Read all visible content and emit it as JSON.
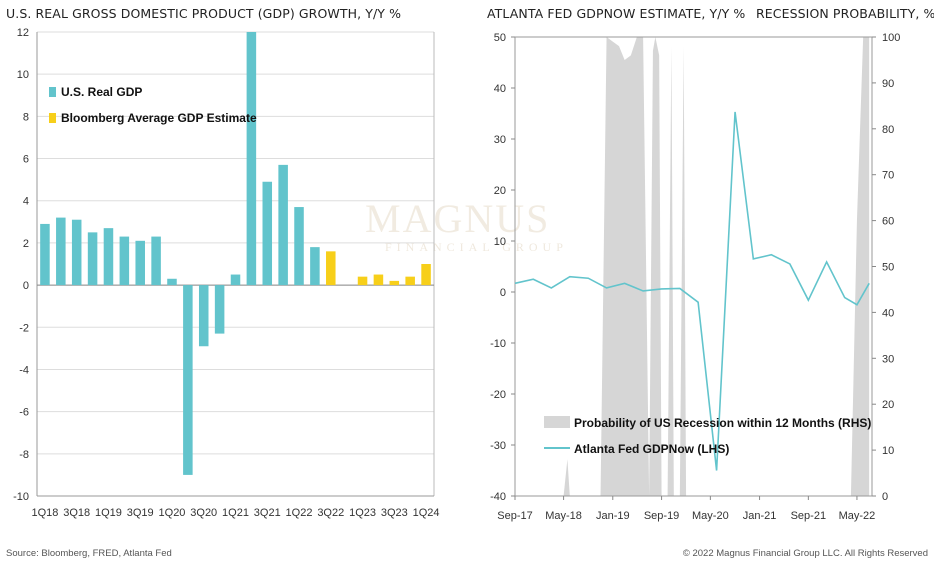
{
  "left_chart": {
    "title": "U.S. REAL GROSS DOMESTIC PRODUCT (GDP) GROWTH, Y/Y %"
  },
  "right_chart": {
    "title": "ATLANTA FED GDPNOW ESTIMATE, Y/Y %",
    "right_title": "RECESSION PROBABILITY, %"
  },
  "footer": {
    "source": "Source: Bloomberg, FRED, Atlanta Fed",
    "copyright": "© 2022 Magnus Financial Group LLC. All Rights Reserved"
  },
  "watermark": {
    "name": "MAGNUS",
    "sub": "FINANCIAL GROUP"
  },
  "colors": {
    "gdp": "#62C4CC",
    "estimate": "#F7CF1A",
    "recession": "#D6D6D6",
    "gdpnow": "#62C4CC",
    "grid": "#DDDDDD",
    "axis": "#333333"
  },
  "chart_data": [
    {
      "type": "bar",
      "ylim": [
        -10,
        12
      ],
      "yticks": [
        -10,
        -8,
        -6,
        -4,
        -2,
        0,
        2,
        4,
        6,
        8,
        10,
        12
      ],
      "categories": [
        "1Q18",
        "2Q18",
        "3Q18",
        "4Q18",
        "1Q19",
        "2Q19",
        "3Q19",
        "4Q19",
        "1Q20",
        "2Q20",
        "3Q20",
        "4Q20",
        "1Q21",
        "2Q21",
        "3Q21",
        "4Q21",
        "1Q22",
        "2Q22",
        "3Q22",
        "4Q22",
        "1Q23",
        "2Q23",
        "3Q23",
        "4Q23",
        "1Q24"
      ],
      "xtick_labels": [
        "1Q18",
        "3Q18",
        "1Q19",
        "3Q19",
        "1Q20",
        "3Q20",
        "1Q21",
        "3Q21",
        "1Q22",
        "3Q22",
        "1Q23",
        "3Q23",
        "1Q24"
      ],
      "series": [
        {
          "name": "U.S. Real GDP",
          "values": [
            2.9,
            3.2,
            3.1,
            2.5,
            2.7,
            2.3,
            2.1,
            2.3,
            0.3,
            -9.0,
            -2.9,
            -2.3,
            0.5,
            12.2,
            4.9,
            5.7,
            3.7,
            1.8,
            null,
            null,
            null,
            null,
            null,
            null,
            null
          ]
        },
        {
          "name": "Bloomberg Average GDP Estimate",
          "values": [
            null,
            null,
            null,
            null,
            null,
            null,
            null,
            null,
            null,
            null,
            null,
            null,
            null,
            null,
            null,
            null,
            null,
            null,
            1.6,
            null,
            0.4,
            0.5,
            0.2,
            0.4,
            1.0
          ]
        }
      ],
      "legend_position": "top-left"
    },
    {
      "type": "area+line",
      "x_ticks": [
        "Sep-17",
        "May-18",
        "Jan-19",
        "Sep-19",
        "May-20",
        "Jan-21",
        "Sep-21",
        "May-22"
      ],
      "left_axis": {
        "ylim": [
          -40,
          50
        ],
        "yticks": [
          -40,
          -30,
          -20,
          -10,
          0,
          10,
          20,
          30,
          40,
          50
        ]
      },
      "right_axis": {
        "ylim": [
          0,
          100
        ],
        "yticks": [
          0,
          10,
          20,
          30,
          40,
          50,
          60,
          70,
          80,
          90,
          100
        ]
      },
      "series": [
        {
          "name": "Probability of US Recession within 12 Months (RHS)",
          "axis": "right",
          "type": "area",
          "points": [
            [
              "2017-09",
              0
            ],
            [
              "2018-03",
              0
            ],
            [
              "2018-05",
              0
            ],
            [
              "2018-05-20",
              8
            ],
            [
              "2018-06",
              0
            ],
            [
              "2018-11",
              0
            ],
            [
              "2018-12",
              100
            ],
            [
              "2019-01",
              99
            ],
            [
              "2019-02",
              98
            ],
            [
              "2019-03",
              95
            ],
            [
              "2019-04",
              96
            ],
            [
              "2019-05",
              100
            ],
            [
              "2019-06",
              100
            ],
            [
              "2019-07",
              0
            ],
            [
              "2019-07-20",
              97
            ],
            [
              "2019-08",
              100
            ],
            [
              "2019-08-20",
              96
            ],
            [
              "2019-09",
              0
            ],
            [
              "2019-10",
              0
            ],
            [
              "2019-10-20",
              98
            ],
            [
              "2019-11",
              0
            ],
            [
              "2019-12",
              0
            ],
            [
              "2019-12-20",
              98
            ],
            [
              "2020-01",
              0
            ],
            [
              "2021-01",
              0
            ],
            [
              "2022-03",
              0
            ],
            [
              "2022-04",
              0
            ],
            [
              "2022-05",
              60
            ],
            [
              "2022-06",
              100
            ],
            [
              "2022-07",
              100
            ]
          ]
        },
        {
          "name": "Atlanta Fed GDPNow (LHS)",
          "axis": "left",
          "type": "line",
          "points": [
            [
              "2017-09",
              1.7
            ],
            [
              "2017-12",
              2.5
            ],
            [
              "2018-03",
              0.8
            ],
            [
              "2018-06",
              3.0
            ],
            [
              "2018-09",
              2.7
            ],
            [
              "2018-12",
              0.8
            ],
            [
              "2019-03",
              1.7
            ],
            [
              "2019-06",
              0.2
            ],
            [
              "2019-09",
              0.6
            ],
            [
              "2019-12",
              0.7
            ],
            [
              "2020-03",
              -2.0
            ],
            [
              "2020-06",
              -35
            ],
            [
              "2020-09",
              35.3
            ],
            [
              "2020-12",
              6.5
            ],
            [
              "2021-03",
              7.3
            ],
            [
              "2021-06",
              5.5
            ],
            [
              "2021-09",
              -1.6
            ],
            [
              "2021-12",
              5.9
            ],
            [
              "2022-03",
              -1.1
            ],
            [
              "2022-05",
              -2.5
            ],
            [
              "2022-07",
              1.7
            ]
          ]
        }
      ],
      "legend_position": "bottom-center"
    }
  ]
}
